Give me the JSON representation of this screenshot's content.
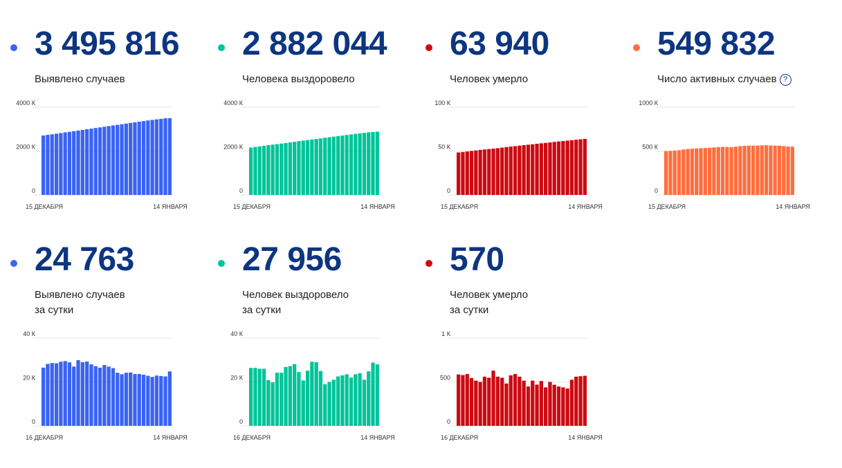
{
  "cards": [
    {
      "value": "3 495 816",
      "label": "Выявлено случаев",
      "label2": "",
      "help": "",
      "color": "#3a63f5",
      "chart_data": {
        "type": "bar",
        "ylim": [
          0,
          4000
        ],
        "yticks": [
          {
            "v": 0,
            "label": "0"
          },
          {
            "v": 2000,
            "label": "2000 К"
          },
          {
            "v": 4000,
            "label": "4000 К"
          }
        ],
        "x_start_label": "15 ДЕКАБРЯ",
        "x_end_label": "14 ЯНВАРЯ",
        "values": [
          2708,
          2736,
          2762,
          2791,
          2819,
          2848,
          2877,
          2905,
          2934,
          2963,
          2992,
          3021,
          3050,
          3079,
          3108,
          3137,
          3165,
          3194,
          3223,
          3252,
          3281,
          3310,
          3338,
          3366,
          3394,
          3420,
          3445,
          3468,
          3493,
          3496
        ]
      }
    },
    {
      "value": "2 882 044",
      "label": "Человека выздоровело",
      "label2": "",
      "help": "",
      "color": "#00c49a",
      "chart_data": {
        "type": "bar",
        "ylim": [
          0,
          4000
        ],
        "yticks": [
          {
            "v": 0,
            "label": "0"
          },
          {
            "v": 2000,
            "label": "2000 К"
          },
          {
            "v": 4000,
            "label": "4000 К"
          }
        ],
        "x_start_label": "15 ДЕКАБРЯ",
        "x_end_label": "14 ЯНВАРЯ",
        "values": [
          2160,
          2186,
          2212,
          2239,
          2266,
          2291,
          2315,
          2340,
          2366,
          2393,
          2420,
          2448,
          2476,
          2502,
          2526,
          2548,
          2575,
          2603,
          2630,
          2657,
          2682,
          2704,
          2730,
          2756,
          2782,
          2804,
          2828,
          2854,
          2866,
          2882
        ]
      }
    },
    {
      "value": "63 940",
      "label": "Человек умерло",
      "label2": "",
      "help": "",
      "color": "#cc0a12",
      "chart_data": {
        "type": "bar",
        "ylim": [
          0,
          100
        ],
        "yticks": [
          {
            "v": 0,
            "label": "0"
          },
          {
            "v": 50,
            "label": "50 К"
          },
          {
            "v": 100,
            "label": "100 К"
          }
        ],
        "x_start_label": "15 ДЕКАБРЯ",
        "x_end_label": "14 ЯНВАРЯ",
        "values": [
          48.4,
          48.9,
          49.5,
          50.1,
          50.7,
          51.3,
          51.8,
          52.3,
          52.8,
          53.3,
          53.9,
          54.5,
          55.1,
          55.6,
          56.2,
          56.7,
          57.2,
          57.7,
          58.3,
          58.8,
          59.3,
          59.8,
          60.4,
          60.9,
          61.4,
          61.9,
          62.4,
          62.9,
          63.4,
          63.9
        ]
      }
    },
    {
      "value": "549 832",
      "label": "Число активных случаев",
      "label2": "",
      "help": "?",
      "color": "#ff6e3d",
      "chart_data": {
        "type": "bar",
        "ylim": [
          0,
          1000
        ],
        "yticks": [
          {
            "v": 0,
            "label": "0"
          },
          {
            "v": 500,
            "label": "500 К"
          },
          {
            "v": 1000,
            "label": "1000 К"
          }
        ],
        "x_start_label": "15 ДЕКАБРЯ",
        "x_end_label": "14 ЯНВАРЯ",
        "values": [
          500,
          502,
          505,
          510,
          518,
          524,
          528,
          530,
          533,
          535,
          538,
          541,
          545,
          548,
          546,
          544,
          550,
          556,
          560,
          562,
          561,
          563,
          565,
          566,
          564,
          562,
          560,
          557,
          552,
          550
        ]
      }
    },
    {
      "value": "24 763",
      "label": "Выявлено случаев",
      "label2": "за сутки",
      "help": "",
      "color": "#3a63f5",
      "chart_data": {
        "type": "bar",
        "ylim": [
          0,
          40
        ],
        "yticks": [
          {
            "v": 0,
            "label": "0"
          },
          {
            "v": 20,
            "label": "20 К"
          },
          {
            "v": 40,
            "label": "40 К"
          }
        ],
        "x_start_label": "16 ДЕКАБРЯ",
        "x_end_label": "14 ЯНВАРЯ",
        "values": [
          26.5,
          28.2,
          28.6,
          28.5,
          29.2,
          29.5,
          28.9,
          27.0,
          29.9,
          29.0,
          29.3,
          28.0,
          27.2,
          26.5,
          27.7,
          27.0,
          26.3,
          24.2,
          23.5,
          24.2,
          24.3,
          23.6,
          23.6,
          23.3,
          22.8,
          22.3,
          22.9,
          22.7,
          22.5,
          24.8
        ]
      }
    },
    {
      "value": "27 956",
      "label": "Человек выздоровело",
      "label2": "за сутки",
      "help": "",
      "color": "#00c49a",
      "chart_data": {
        "type": "bar",
        "ylim": [
          0,
          40
        ],
        "yticks": [
          {
            "v": 0,
            "label": "0"
          },
          {
            "v": 20,
            "label": "20 К"
          },
          {
            "v": 40,
            "label": "40 К"
          }
        ],
        "x_start_label": "16 ДЕКАБРЯ",
        "x_end_label": "14 ЯНВАРЯ",
        "values": [
          26.4,
          26.4,
          26.0,
          26.0,
          20.8,
          19.8,
          24.2,
          24.2,
          26.8,
          27.2,
          28.1,
          24.5,
          20.7,
          25.1,
          29.2,
          29.0,
          25.0,
          19.0,
          20.0,
          21.0,
          22.5,
          23.0,
          23.5,
          22.0,
          23.5,
          24.0,
          21.0,
          24.8,
          28.8,
          28.0
        ]
      }
    },
    {
      "value": "570",
      "label": "Человек умерло",
      "label2": "за сутки",
      "help": "",
      "color": "#cc0a12",
      "chart_data": {
        "type": "bar",
        "ylim": [
          0,
          1000
        ],
        "yticks": [
          {
            "v": 0,
            "label": "0"
          },
          {
            "v": 500,
            "label": "500"
          },
          {
            "v": 1000,
            "label": "1 К"
          }
        ],
        "x_start_label": "16 ДЕКАБРЯ",
        "x_end_label": "14 ЯНВАРЯ",
        "values": [
          585,
          578,
          590,
          545,
          515,
          500,
          560,
          548,
          628,
          560,
          548,
          482,
          575,
          590,
          560,
          515,
          448,
          515,
          470,
          510,
          438,
          500,
          468,
          448,
          438,
          425,
          525,
          560,
          565,
          570
        ]
      }
    }
  ]
}
